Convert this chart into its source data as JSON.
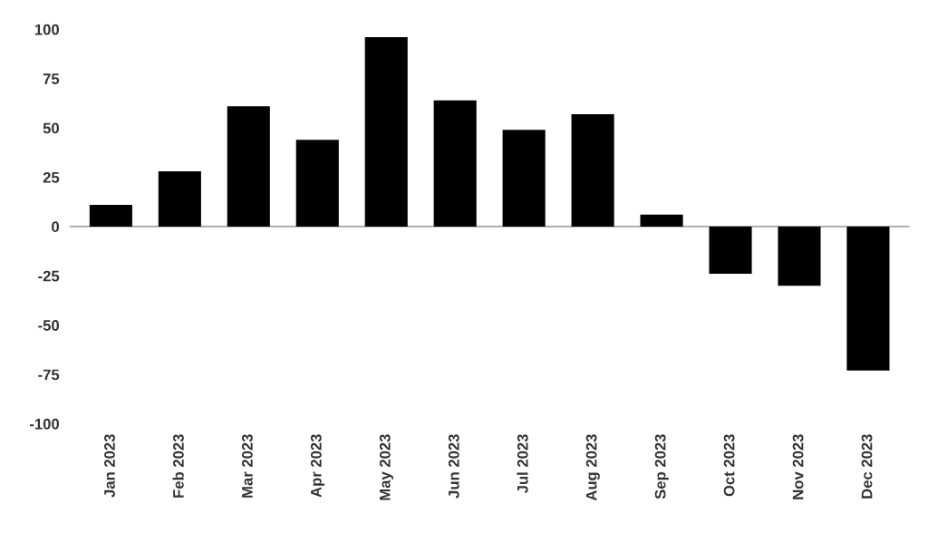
{
  "chart_data": {
    "type": "bar",
    "categories": [
      "Jan 2023",
      "Feb 2023",
      "Mar 2023",
      "Apr 2023",
      "May 2023",
      "Jun 2023",
      "Jul 2023",
      "Aug 2023",
      "Sep 2023",
      "Oct 2023",
      "Nov 2023",
      "Dec 2023"
    ],
    "values": [
      11,
      28,
      61,
      44,
      96,
      64,
      49,
      57,
      6,
      -24,
      -30,
      -73
    ],
    "color": "#000000",
    "ylim": [
      -100,
      100
    ],
    "yticks": [
      -100,
      -75,
      -50,
      -25,
      0,
      25,
      50,
      75,
      100
    ],
    "grid": false,
    "ref_lines": [
      {
        "axis": "y",
        "value": 0,
        "color": "#808080"
      }
    ],
    "legend": false
  }
}
